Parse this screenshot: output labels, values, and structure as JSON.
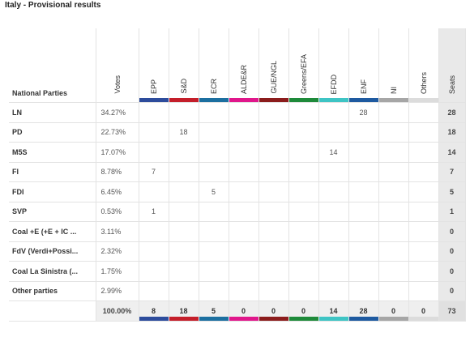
{
  "title": "Italy - Provisional results",
  "headers": {
    "name": "National Parties",
    "votes": "Votes",
    "seats": "Seats",
    "groups": [
      {
        "label": "EPP",
        "color": "#2d4c9c"
      },
      {
        "label": "S&D",
        "color": "#c41e2a"
      },
      {
        "label": "ECR",
        "color": "#1c6fa0"
      },
      {
        "label": "ALDE&R",
        "color": "#e0178b"
      },
      {
        "label": "GUE/NGL",
        "color": "#8b1c1c"
      },
      {
        "label": "Greens/EFA",
        "color": "#1e8a3a"
      },
      {
        "label": "EFDD",
        "color": "#3ec4c4"
      },
      {
        "label": "ENF",
        "color": "#1e5aa0"
      },
      {
        "label": "NI",
        "color": "#a6a6a6"
      },
      {
        "label": "Others",
        "color": "#dcdcdc"
      }
    ]
  },
  "rows": [
    {
      "name": "LN",
      "votes": "34.27%",
      "groups": [
        "",
        "",
        "",
        "",
        "",
        "",
        "",
        "28",
        "",
        ""
      ],
      "seats": "28"
    },
    {
      "name": "PD",
      "votes": "22.73%",
      "groups": [
        "",
        "18",
        "",
        "",
        "",
        "",
        "",
        "",
        "",
        ""
      ],
      "seats": "18"
    },
    {
      "name": "M5S",
      "votes": "17.07%",
      "groups": [
        "",
        "",
        "",
        "",
        "",
        "",
        "14",
        "",
        "",
        ""
      ],
      "seats": "14"
    },
    {
      "name": "FI",
      "votes": "8.78%",
      "groups": [
        "7",
        "",
        "",
        "",
        "",
        "",
        "",
        "",
        "",
        ""
      ],
      "seats": "7"
    },
    {
      "name": "FDI",
      "votes": "6.45%",
      "groups": [
        "",
        "",
        "5",
        "",
        "",
        "",
        "",
        "",
        "",
        ""
      ],
      "seats": "5"
    },
    {
      "name": "SVP",
      "votes": "0.53%",
      "groups": [
        "1",
        "",
        "",
        "",
        "",
        "",
        "",
        "",
        "",
        ""
      ],
      "seats": "1"
    },
    {
      "name": "Coal +E (+E + IC ...",
      "votes": "3.11%",
      "groups": [
        "",
        "",
        "",
        "",
        "",
        "",
        "",
        "",
        "",
        ""
      ],
      "seats": "0"
    },
    {
      "name": "FdV (Verdi+Possi...",
      "votes": "2.32%",
      "groups": [
        "",
        "",
        "",
        "",
        "",
        "",
        "",
        "",
        "",
        ""
      ],
      "seats": "0"
    },
    {
      "name": "Coal La Sinistra (...",
      "votes": "1.75%",
      "groups": [
        "",
        "",
        "",
        "",
        "",
        "",
        "",
        "",
        "",
        ""
      ],
      "seats": "0"
    },
    {
      "name": "Other parties",
      "votes": "2.99%",
      "groups": [
        "",
        "",
        "",
        "",
        "",
        "",
        "",
        "",
        "",
        ""
      ],
      "seats": "0"
    }
  ],
  "total": {
    "votes": "100.00%",
    "groups": [
      "8",
      "18",
      "5",
      "0",
      "0",
      "0",
      "14",
      "28",
      "0",
      "0"
    ],
    "seats": "73"
  }
}
